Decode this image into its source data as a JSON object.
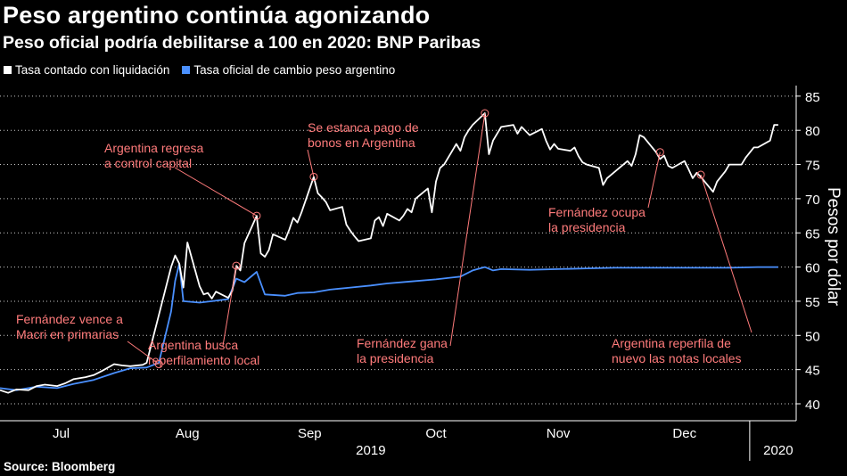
{
  "header": {
    "title": "Peso argentino continúa agonizando",
    "subtitle": "Peso oficial podría debilitarse a 100 en 2020: BNP Paribas"
  },
  "legend": [
    {
      "label": "Tasa contado con liquidación",
      "color": "#ffffff"
    },
    {
      "label": "Tasa oficial de cambio peso argentino",
      "color": "#4a90ff"
    }
  ],
  "source": "Source: Bloomberg",
  "colors": {
    "background": "#000000",
    "annotation": "#ff7b7b",
    "grid": "#ffffff"
  },
  "chart_data": {
    "type": "line",
    "ylabel": "Pesos por dólar",
    "y_axis_side": "right",
    "ylim": [
      38,
      86
    ],
    "yticks": [
      40,
      45,
      50,
      55,
      60,
      65,
      70,
      75,
      80,
      85
    ],
    "grid": "horizontal dotted",
    "xlim": [
      "2019-07-01",
      "2020-01-10"
    ],
    "month_labels": [
      {
        "label": "Jul",
        "date": "2019-07-16"
      },
      {
        "label": "Aug",
        "date": "2019-08-16"
      },
      {
        "label": "Sep",
        "date": "2019-09-15"
      },
      {
        "label": "Oct",
        "date": "2019-10-16"
      },
      {
        "label": "Nov",
        "date": "2019-11-15"
      },
      {
        "label": "Dec",
        "date": "2019-12-16"
      }
    ],
    "year_labels": [
      {
        "label": "2019",
        "date": "2019-09-30"
      },
      {
        "label": "2020",
        "date": "2020-01-08"
      }
    ],
    "year_divider": "2020-01-01",
    "series": [
      {
        "name": "Tasa contado con liquidación",
        "color": "#ffffff",
        "points": [
          [
            "2019-07-01",
            42.0
          ],
          [
            "2019-07-03",
            41.6
          ],
          [
            "2019-07-05",
            42.1
          ],
          [
            "2019-07-08",
            42.0
          ],
          [
            "2019-07-10",
            42.6
          ],
          [
            "2019-07-12",
            42.8
          ],
          [
            "2019-07-15",
            42.6
          ],
          [
            "2019-07-17",
            43.0
          ],
          [
            "2019-07-19",
            43.6
          ],
          [
            "2019-07-22",
            43.9
          ],
          [
            "2019-07-24",
            44.2
          ],
          [
            "2019-07-26",
            44.8
          ],
          [
            "2019-07-29",
            45.8
          ],
          [
            "2019-07-31",
            45.6
          ],
          [
            "2019-08-02",
            45.5
          ],
          [
            "2019-08-05",
            45.7
          ],
          [
            "2019-08-06",
            46.0
          ],
          [
            "2019-08-09",
            53.0
          ],
          [
            "2019-08-12",
            60.0
          ],
          [
            "2019-08-13",
            61.7
          ],
          [
            "2019-08-14",
            60.5
          ],
          [
            "2019-08-15",
            57.0
          ],
          [
            "2019-08-16",
            63.6
          ],
          [
            "2019-08-19",
            57.2
          ],
          [
            "2019-08-20",
            56.0
          ],
          [
            "2019-08-21",
            56.2
          ],
          [
            "2019-08-22",
            55.4
          ],
          [
            "2019-08-23",
            56.4
          ],
          [
            "2019-08-26",
            55.5
          ],
          [
            "2019-08-27",
            56.5
          ],
          [
            "2019-08-28",
            60.2
          ],
          [
            "2019-08-29",
            59.5
          ],
          [
            "2019-08-30",
            63.5
          ],
          [
            "2019-09-02",
            67.5
          ],
          [
            "2019-09-03",
            62.0
          ],
          [
            "2019-09-04",
            61.5
          ],
          [
            "2019-09-05",
            62.5
          ],
          [
            "2019-09-06",
            64.8
          ],
          [
            "2019-09-09",
            64.0
          ],
          [
            "2019-09-10",
            65.5
          ],
          [
            "2019-09-11",
            67.2
          ],
          [
            "2019-09-12",
            66.5
          ],
          [
            "2019-09-13",
            68.0
          ],
          [
            "2019-09-16",
            73.2
          ],
          [
            "2019-09-17",
            70.8
          ],
          [
            "2019-09-18",
            70.2
          ],
          [
            "2019-09-19",
            69.5
          ],
          [
            "2019-09-20",
            68.3
          ],
          [
            "2019-09-23",
            68.8
          ],
          [
            "2019-09-24",
            66.2
          ],
          [
            "2019-09-25",
            65.3
          ],
          [
            "2019-09-26",
            64.5
          ],
          [
            "2019-09-27",
            63.8
          ],
          [
            "2019-09-30",
            64.2
          ],
          [
            "2019-10-01",
            66.8
          ],
          [
            "2019-10-02",
            67.3
          ],
          [
            "2019-10-03",
            66.0
          ],
          [
            "2019-10-04",
            67.8
          ],
          [
            "2019-10-07",
            66.8
          ],
          [
            "2019-10-08",
            67.5
          ],
          [
            "2019-10-09",
            68.5
          ],
          [
            "2019-10-10",
            68.0
          ],
          [
            "2019-10-11",
            70.0
          ],
          [
            "2019-10-14",
            71.5
          ],
          [
            "2019-10-15",
            68.0
          ],
          [
            "2019-10-16",
            72.5
          ],
          [
            "2019-10-17",
            74.5
          ],
          [
            "2019-10-18",
            75.0
          ],
          [
            "2019-10-21",
            78.0
          ],
          [
            "2019-10-22",
            77.0
          ],
          [
            "2019-10-23",
            79.0
          ],
          [
            "2019-10-24",
            80.0
          ],
          [
            "2019-10-25",
            80.8
          ],
          [
            "2019-10-28",
            82.5
          ],
          [
            "2019-10-29",
            76.5
          ],
          [
            "2019-10-30",
            78.5
          ],
          [
            "2019-11-01",
            80.5
          ],
          [
            "2019-11-04",
            80.8
          ],
          [
            "2019-11-05",
            79.5
          ],
          [
            "2019-11-06",
            80.5
          ],
          [
            "2019-11-08",
            79.3
          ],
          [
            "2019-11-11",
            80.2
          ],
          [
            "2019-11-12",
            78.5
          ],
          [
            "2019-11-13",
            77.2
          ],
          [
            "2019-11-14",
            78.0
          ],
          [
            "2019-11-15",
            77.3
          ],
          [
            "2019-11-18",
            77.0
          ],
          [
            "2019-11-19",
            77.5
          ],
          [
            "2019-11-20",
            76.2
          ],
          [
            "2019-11-21",
            75.3
          ],
          [
            "2019-11-22",
            75.0
          ],
          [
            "2019-11-25",
            74.5
          ],
          [
            "2019-11-26",
            72.0
          ],
          [
            "2019-11-27",
            73.0
          ],
          [
            "2019-11-29",
            74.0
          ],
          [
            "2019-12-02",
            75.5
          ],
          [
            "2019-12-03",
            74.8
          ],
          [
            "2019-12-04",
            76.5
          ],
          [
            "2019-12-05",
            79.3
          ],
          [
            "2019-12-06",
            79.0
          ],
          [
            "2019-12-09",
            76.8
          ],
          [
            "2019-12-10",
            75.8
          ],
          [
            "2019-12-11",
            76.3
          ],
          [
            "2019-12-12",
            74.8
          ],
          [
            "2019-12-13",
            74.5
          ],
          [
            "2019-12-16",
            75.5
          ],
          [
            "2019-12-17",
            74.3
          ],
          [
            "2019-12-18",
            73.0
          ],
          [
            "2019-12-19",
            73.8
          ],
          [
            "2019-12-20",
            73.2
          ],
          [
            "2019-12-23",
            71.0
          ],
          [
            "2019-12-24",
            72.5
          ],
          [
            "2019-12-26",
            74.0
          ],
          [
            "2019-12-27",
            75.0
          ],
          [
            "2019-12-30",
            75.0
          ],
          [
            "2019-12-31",
            76.0
          ],
          [
            "2020-01-02",
            77.5
          ],
          [
            "2020-01-03",
            77.5
          ],
          [
            "2020-01-06",
            78.5
          ],
          [
            "2020-01-07",
            80.8
          ],
          [
            "2020-01-08",
            80.8
          ]
        ]
      },
      {
        "name": "Tasa oficial de cambio peso argentino",
        "color": "#4a90ff",
        "points": [
          [
            "2019-07-01",
            42.3
          ],
          [
            "2019-07-05",
            42.0
          ],
          [
            "2019-07-10",
            42.5
          ],
          [
            "2019-07-15",
            42.3
          ],
          [
            "2019-07-19",
            42.9
          ],
          [
            "2019-07-24",
            43.5
          ],
          [
            "2019-07-29",
            44.5
          ],
          [
            "2019-08-02",
            45.2
          ],
          [
            "2019-08-06",
            45.3
          ],
          [
            "2019-08-09",
            46.0
          ],
          [
            "2019-08-12",
            53.5
          ],
          [
            "2019-08-13",
            58.0
          ],
          [
            "2019-08-14",
            60.5
          ],
          [
            "2019-08-15",
            55.0
          ],
          [
            "2019-08-19",
            54.8
          ],
          [
            "2019-08-22",
            55.0
          ],
          [
            "2019-08-26",
            55.3
          ],
          [
            "2019-08-28",
            58.3
          ],
          [
            "2019-08-30",
            57.8
          ],
          [
            "2019-09-02",
            59.3
          ],
          [
            "2019-09-04",
            56.0
          ],
          [
            "2019-09-09",
            55.8
          ],
          [
            "2019-09-12",
            56.2
          ],
          [
            "2019-09-16",
            56.3
          ],
          [
            "2019-09-20",
            56.7
          ],
          [
            "2019-09-25",
            57.0
          ],
          [
            "2019-09-30",
            57.3
          ],
          [
            "2019-10-04",
            57.6
          ],
          [
            "2019-10-10",
            57.9
          ],
          [
            "2019-10-16",
            58.2
          ],
          [
            "2019-10-22",
            58.6
          ],
          [
            "2019-10-25",
            59.5
          ],
          [
            "2019-10-28",
            60.0
          ],
          [
            "2019-10-30",
            59.5
          ],
          [
            "2019-11-01",
            59.7
          ],
          [
            "2019-11-08",
            59.6
          ],
          [
            "2019-11-15",
            59.7
          ],
          [
            "2019-11-22",
            59.8
          ],
          [
            "2019-11-29",
            59.9
          ],
          [
            "2019-12-06",
            59.9
          ],
          [
            "2019-12-13",
            59.9
          ],
          [
            "2019-12-20",
            59.9
          ],
          [
            "2019-12-27",
            59.9
          ],
          [
            "2020-01-03",
            60.0
          ],
          [
            "2020-01-08",
            60.0
          ]
        ]
      }
    ],
    "annotations": [
      {
        "lines": [
          "Fernández vence a",
          "Macri en primarias"
        ],
        "point": [
          "2019-08-09",
          45.8
        ]
      },
      {
        "lines": [
          "Argentina busca",
          "reperfilamiento local"
        ],
        "point": [
          "2019-08-28",
          60.2
        ]
      },
      {
        "lines": [
          "Argentina regresa",
          "a control capital"
        ],
        "point": [
          "2019-09-02",
          67.5
        ]
      },
      {
        "lines": [
          "Se estanca pago de",
          "bonos en Argentina"
        ],
        "point": [
          "2019-09-16",
          73.2
        ]
      },
      {
        "lines": [
          "Fernández gana",
          "la presidencia"
        ],
        "point": [
          "2019-10-28",
          82.5
        ]
      },
      {
        "lines": [
          "Fernández ocupa",
          "la presidencia"
        ],
        "point": [
          "2019-12-10",
          76.8
        ]
      },
      {
        "lines": [
          "Argentina reperfila de",
          "nuevo las notas locales"
        ],
        "point": [
          "2019-12-20",
          73.5
        ]
      }
    ]
  }
}
